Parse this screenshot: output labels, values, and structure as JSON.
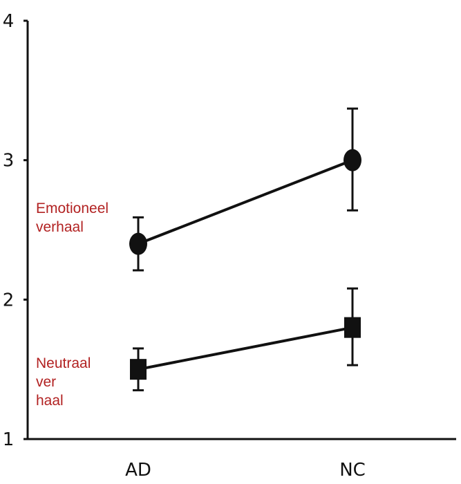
{
  "chart_data": {
    "type": "line",
    "categories": [
      "AD",
      "NC"
    ],
    "ylim": [
      1,
      4
    ],
    "yticks": [
      "1",
      "2",
      "3",
      "4"
    ],
    "grid": false,
    "series": [
      {
        "label_lines": [
          "Emotioneel",
          "verhaal"
        ],
        "marker": "circle",
        "values": [
          2.4,
          3.0
        ],
        "err_low": [
          2.21,
          2.64
        ],
        "err_high": [
          2.59,
          3.37
        ]
      },
      {
        "label_lines": [
          "Neutraal",
          "ver",
          "haal"
        ],
        "marker": "square",
        "values": [
          1.5,
          1.8
        ],
        "err_low": [
          1.35,
          1.53
        ],
        "err_high": [
          1.65,
          2.08
        ]
      }
    ],
    "colors": {
      "axis": "#111111",
      "series": "#111111",
      "label": "#b22222"
    }
  }
}
